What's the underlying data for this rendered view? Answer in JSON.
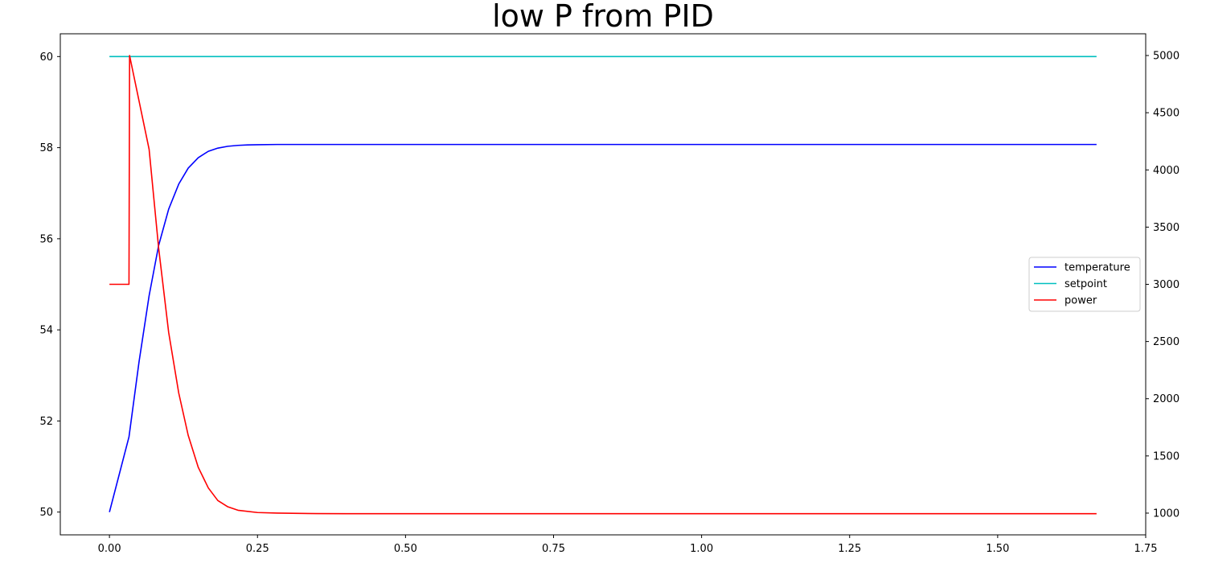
{
  "chart_data": {
    "type": "line",
    "title": "low P from PID",
    "xlabel": "",
    "ylabel": "",
    "ylabel_right": "",
    "xlim": [
      -0.083,
      1.75
    ],
    "ylim": [
      49.5,
      60.5
    ],
    "ylim_right": [
      810,
      5190
    ],
    "x_ticks": [
      "0.00",
      "0.25",
      "0.50",
      "0.75",
      "1.00",
      "1.25",
      "1.50",
      "1.75"
    ],
    "y_ticks": [
      "50",
      "52",
      "54",
      "56",
      "58",
      "60"
    ],
    "y_ticks_right": [
      "1000",
      "1500",
      "2000",
      "2500",
      "3000",
      "3500",
      "4000",
      "4500",
      "5000"
    ],
    "grid": false,
    "legend_position": "center-right",
    "series": [
      {
        "name": "temperature",
        "axis": "left",
        "color": "#0000ff",
        "x": [
          0.0,
          0.033,
          0.05,
          0.067,
          0.083,
          0.1,
          0.117,
          0.133,
          0.15,
          0.167,
          0.183,
          0.2,
          0.217,
          0.233,
          0.25,
          0.283,
          0.3,
          0.35,
          1.667
        ],
        "y": [
          50.0,
          51.65,
          53.3,
          54.75,
          55.85,
          56.65,
          57.2,
          57.55,
          57.78,
          57.92,
          57.99,
          58.03,
          58.05,
          58.06,
          58.065,
          58.07,
          58.07,
          58.07,
          58.07
        ]
      },
      {
        "name": "setpoint",
        "axis": "left",
        "color": "#00bfbf",
        "x": [
          0.0,
          1.667
        ],
        "y": [
          60.0,
          60.0
        ]
      },
      {
        "name": "power",
        "axis": "right",
        "color": "#ff0000",
        "x": [
          0.0,
          0.033,
          0.034,
          0.067,
          0.083,
          0.1,
          0.117,
          0.133,
          0.15,
          0.167,
          0.183,
          0.2,
          0.217,
          0.25,
          0.283,
          0.35,
          0.4,
          1.667
        ],
        "y": [
          3000,
          3000,
          5000,
          4180,
          3320,
          2580,
          2050,
          1680,
          1400,
          1220,
          1110,
          1055,
          1025,
          1005,
          1000,
          996,
          995,
          995
        ]
      }
    ]
  }
}
